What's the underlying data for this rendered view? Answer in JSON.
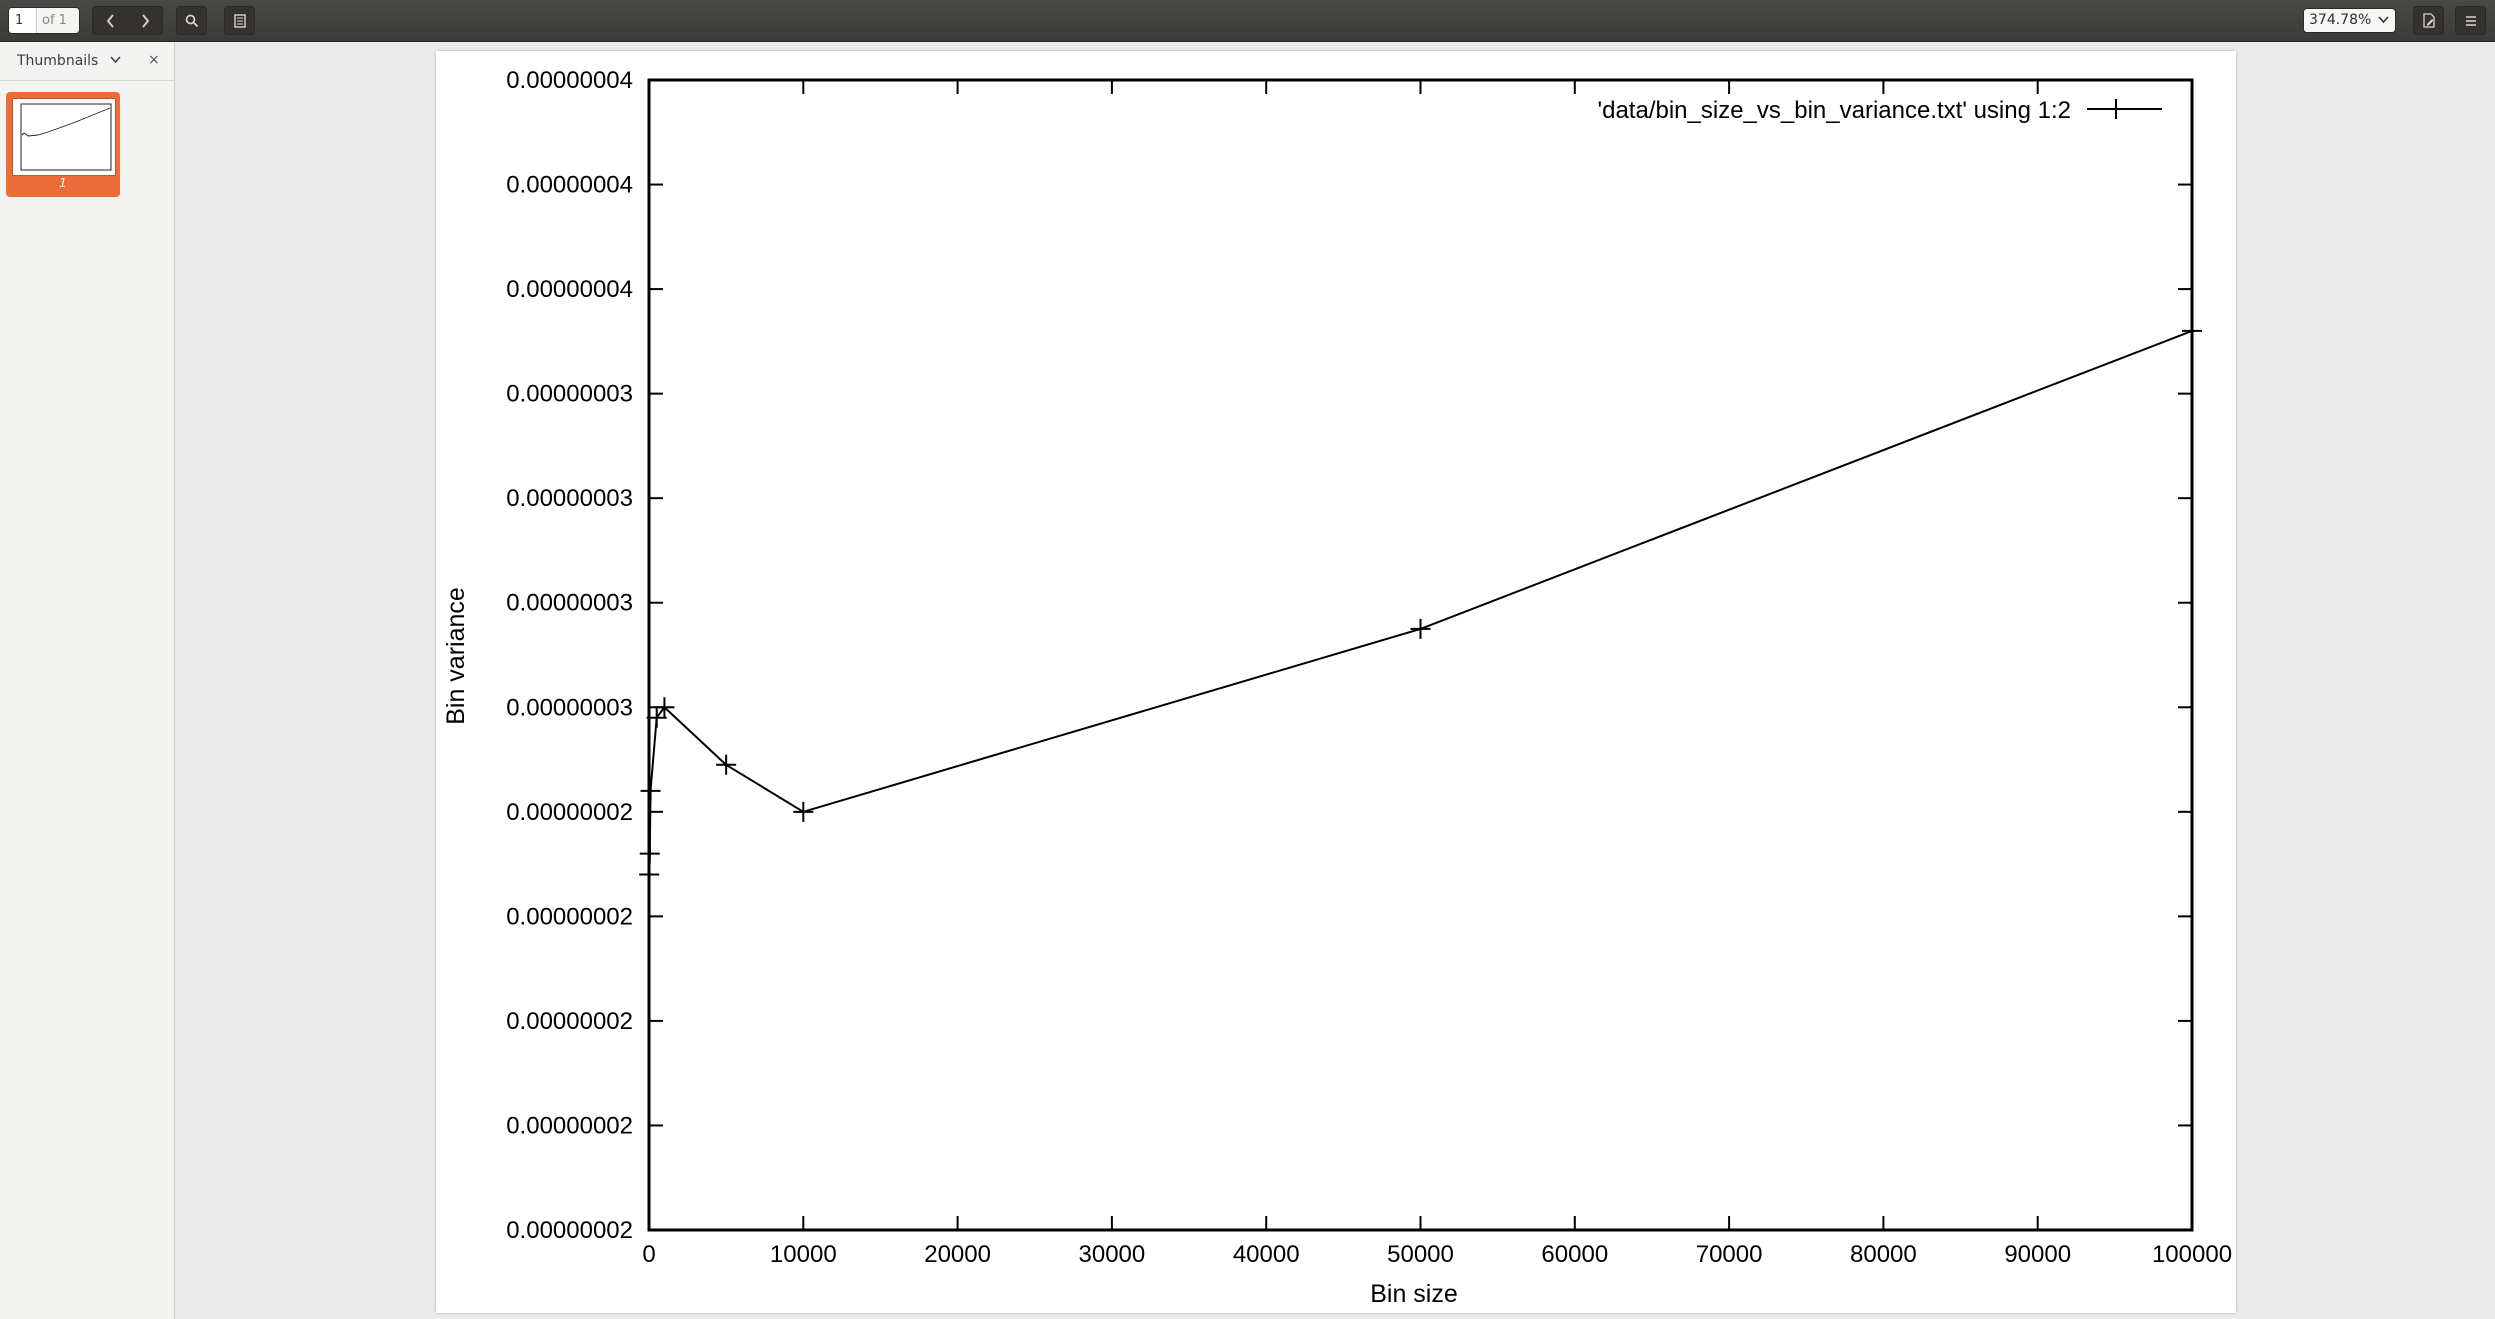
{
  "toolbar": {
    "page_current": "1",
    "page_of": "of 1",
    "zoom": "374.78%"
  },
  "sidebar": {
    "title": "Thumbnails",
    "close": "×",
    "thumbnail_page": "1"
  },
  "icons": {
    "prev": "chevron-left-icon",
    "next": "chevron-right-icon",
    "search": "search-icon",
    "sidebar": "document-icon",
    "annotate": "annotation-icon",
    "menu": "hamburger-menu-icon"
  },
  "chart_data": {
    "type": "line",
    "legend": "'data/bin_size_vs_bin_variance.txt' using 1:2",
    "legend_position": "top-right",
    "xlabel": "Bin size",
    "ylabel": "Bin variance",
    "xlim": [
      0,
      100000
    ],
    "xticks": [
      "0",
      "10000",
      "20000",
      "30000",
      "40000",
      "50000",
      "60000",
      "70000",
      "80000",
      "90000",
      "100000"
    ],
    "yticks": [
      "0.00000002",
      "0.00000002",
      "0.00000002",
      "0.00000002",
      "0.00000002",
      "0.00000003",
      "0.00000003",
      "0.00000003",
      "0.00000003",
      "0.00000004",
      "0.00000004",
      "0.00000004"
    ],
    "grid": false,
    "marker": "plus",
    "x": [
      10,
      50,
      100,
      500,
      1000,
      5000,
      10000,
      50000,
      100000
    ],
    "y": [
      2.68e-08,
      2.72e-08,
      2.84e-08,
      2.98e-08,
      3e-08,
      2.89e-08,
      2.8e-08,
      3.15e-08,
      3.72e-08
    ]
  }
}
